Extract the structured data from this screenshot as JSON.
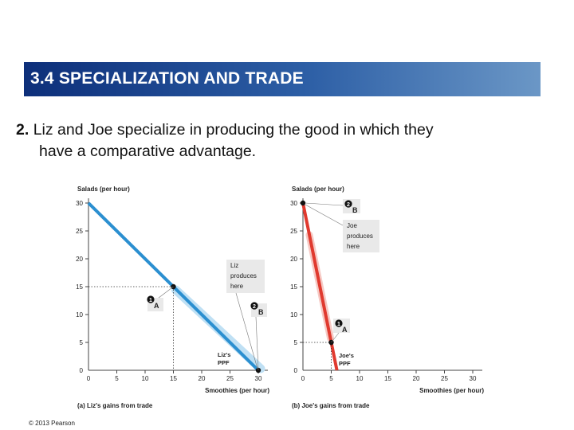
{
  "slide": {
    "title": "3.4  SPECIALIZATION AND TRADE",
    "bullet_number": "2.",
    "bullet_line1": "Liz and Joe specialize in producing the good in which they",
    "bullet_line2": "have a comparative advantage.",
    "copyright": "© 2013 Pearson"
  },
  "colors": {
    "banner_dark": "#0d2f7a",
    "banner_light": "#6b97c6",
    "liz_ppf": "#2b8fd0",
    "liz_ppf_shadow": "#bfe0f4",
    "joe_ppf": "#e03a2f",
    "joe_ppf_shadow": "#f6c9c4",
    "callout_bg": "#e9e9e9"
  },
  "chart_data": [
    {
      "type": "line",
      "caption": "(a) Liz's gains from trade",
      "xlabel": "Smoothies (per hour)",
      "ylabel": "Salads (per hour)",
      "xlim": [
        0,
        30
      ],
      "ylim": [
        0,
        30
      ],
      "xticks": [
        "0",
        "5",
        "10",
        "15",
        "20",
        "25",
        "30"
      ],
      "yticks": [
        "0",
        "5",
        "10",
        "15",
        "20",
        "25",
        "30"
      ],
      "series": [
        {
          "name": "Liz's PPF",
          "x": [
            0,
            30
          ],
          "y": [
            30,
            0
          ]
        }
      ],
      "points": [
        {
          "label": "A",
          "marker": "1",
          "x": 15,
          "y": 15
        },
        {
          "label": "B",
          "marker": "2",
          "x": 30,
          "y": 0
        }
      ],
      "callouts": [
        {
          "text": "Liz produces here",
          "target": "B"
        }
      ],
      "ppf_label": "Liz's PPF"
    },
    {
      "type": "line",
      "caption": "(b) Joe's gains from trade",
      "xlabel": "Smoothies (per hour)",
      "ylabel": "Salads (per hour)",
      "xlim": [
        0,
        30
      ],
      "ylim": [
        0,
        30
      ],
      "xticks": [
        "0",
        "5",
        "10",
        "15",
        "20",
        "25",
        "30"
      ],
      "yticks": [
        "0",
        "5",
        "10",
        "15",
        "20",
        "25",
        "30"
      ],
      "series": [
        {
          "name": "Joe's PPF",
          "x": [
            0,
            6
          ],
          "y": [
            30,
            0
          ]
        }
      ],
      "points": [
        {
          "label": "A",
          "marker": "1",
          "x": 5,
          "y": 5
        },
        {
          "label": "B",
          "marker": "2",
          "x": 0,
          "y": 30
        }
      ],
      "callouts": [
        {
          "text": "Joe produces here",
          "target": "B"
        }
      ],
      "ppf_label": "Joe's PPF"
    }
  ]
}
